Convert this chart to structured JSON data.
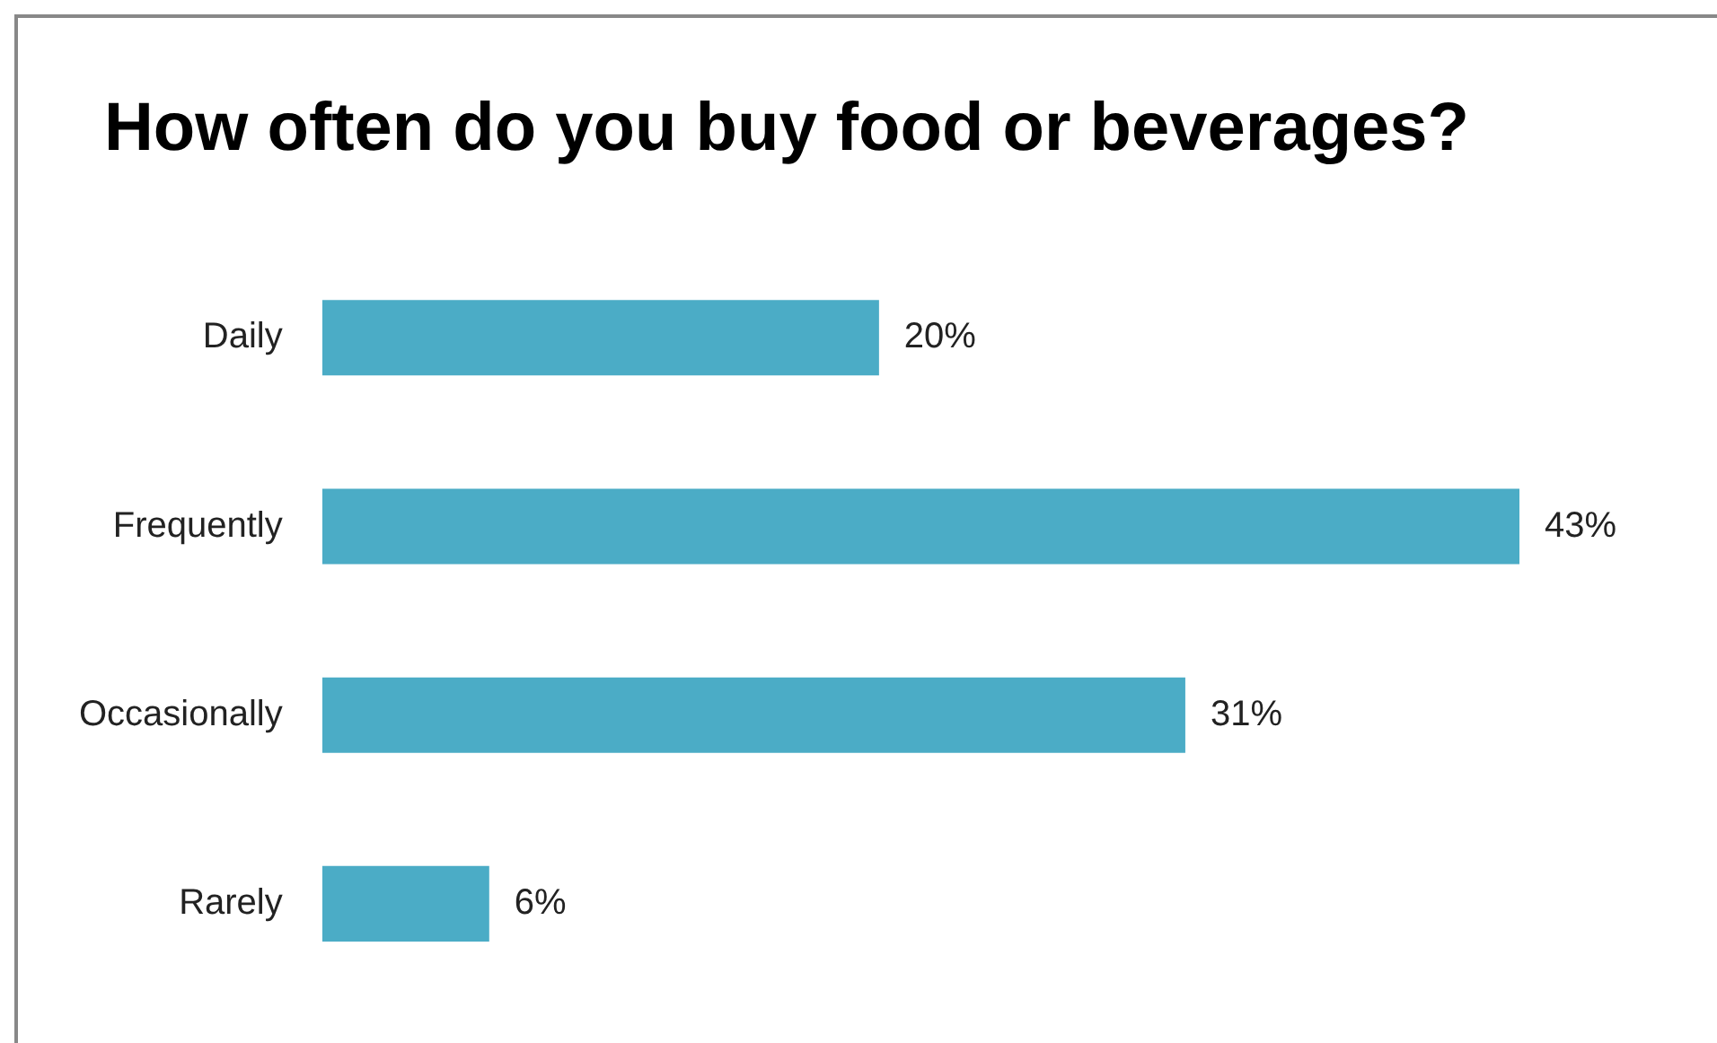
{
  "chart_data": {
    "type": "bar",
    "orientation": "horizontal",
    "title": "How often do you buy food or beverages?",
    "categories": [
      "Daily",
      "Frequently",
      "Occasionally",
      "Rarely"
    ],
    "values": [
      20,
      43,
      31,
      6
    ],
    "value_labels": [
      "20%",
      "43%",
      "31%",
      "6%"
    ],
    "color": "#4bacc6",
    "xlim": [
      0,
      43
    ],
    "legend": false
  }
}
